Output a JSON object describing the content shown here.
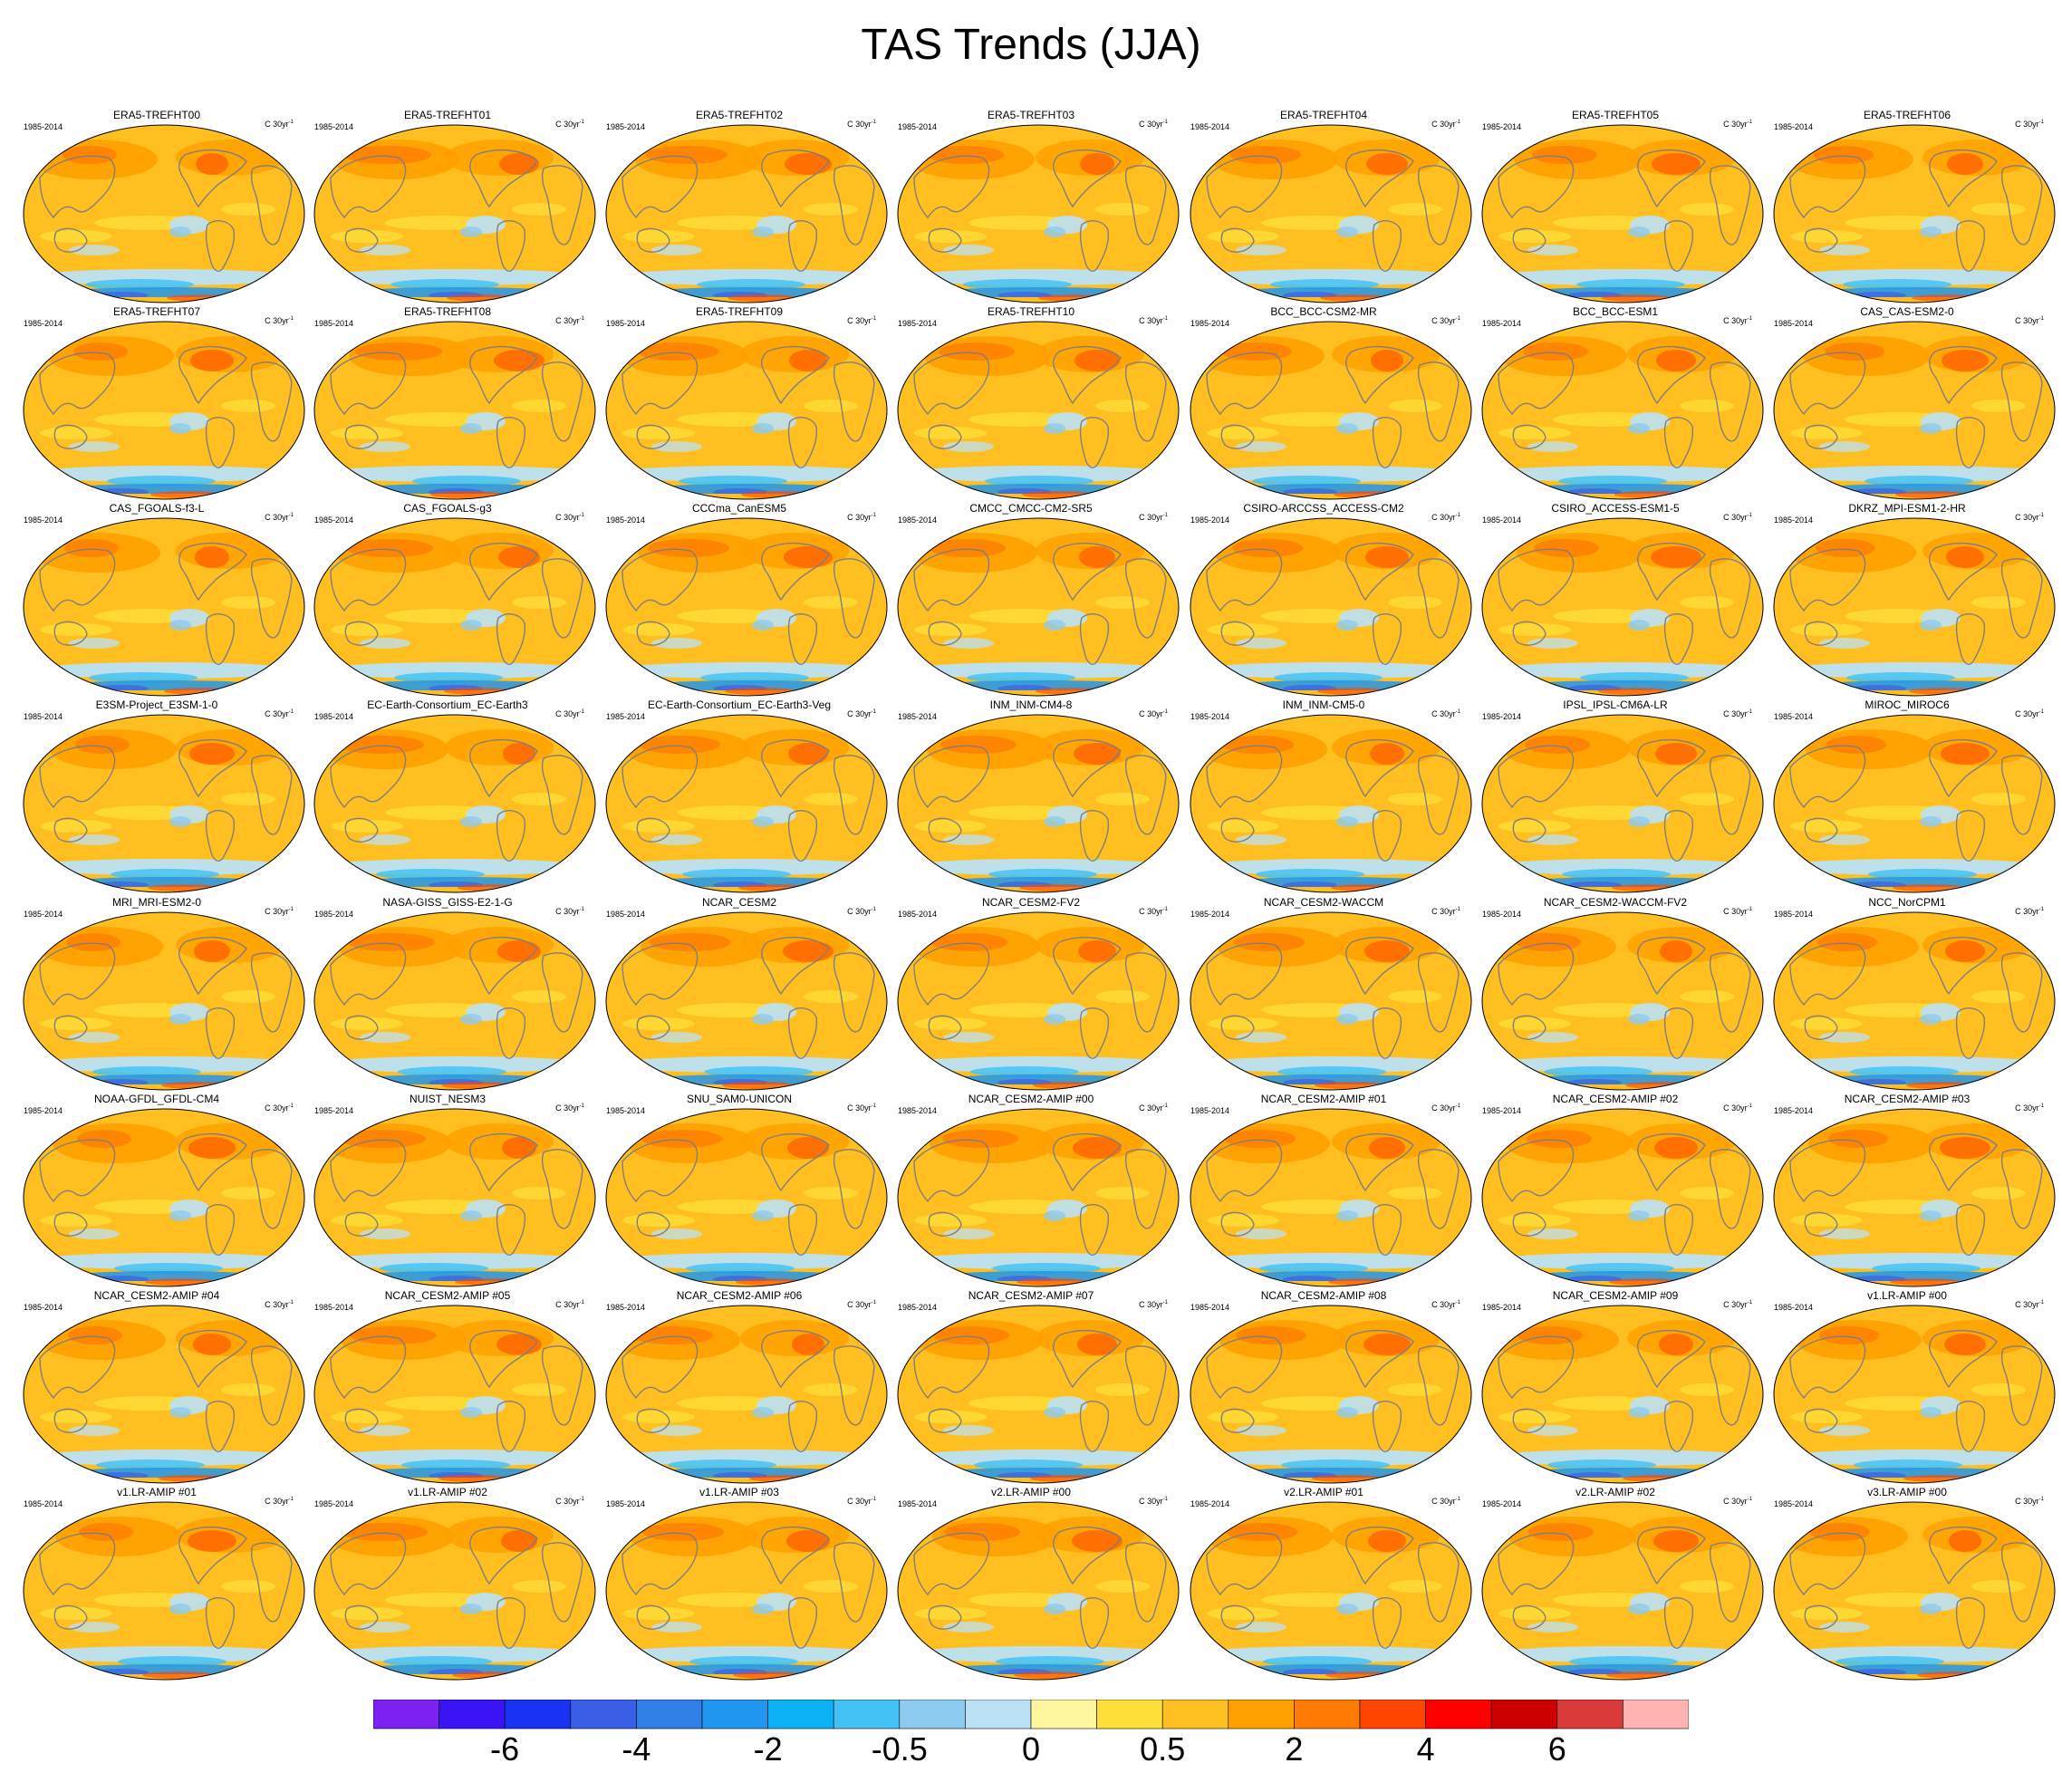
{
  "title": "TAS Trends (JJA)",
  "period": "1985-2014",
  "units_base": "C 30yr",
  "units_exp": "-1",
  "colors": {
    "land_outline": "#7f7f7f",
    "palette": [
      "#7b22f0",
      "#3a14f5",
      "#1a33f2",
      "#3a5ee6",
      "#2f7fe6",
      "#2096f0",
      "#0db1f5",
      "#45c2f5",
      "#8ccbef",
      "#bbe1f5",
      "#fff8a0",
      "#ffdf3a",
      "#ffbf20",
      "#ffa000",
      "#ff7a00",
      "#ff4500",
      "#ff0000",
      "#cc0000",
      "#d93a3a",
      "#ffb3b3"
    ]
  },
  "colorbar": {
    "labels": [
      "-6",
      "-4",
      "-2",
      "-0.5",
      "0",
      "0.5",
      "2",
      "4",
      "6"
    ],
    "label_boxes": [
      2,
      4,
      6,
      8,
      10,
      12,
      14,
      16,
      18
    ]
  },
  "panels": [
    {
      "name": "ERA5-TREFHT00"
    },
    {
      "name": "ERA5-TREFHT01"
    },
    {
      "name": "ERA5-TREFHT02"
    },
    {
      "name": "ERA5-TREFHT03"
    },
    {
      "name": "ERA5-TREFHT04"
    },
    {
      "name": "ERA5-TREFHT05"
    },
    {
      "name": "ERA5-TREFHT06"
    },
    {
      "name": "ERA5-TREFHT07"
    },
    {
      "name": "ERA5-TREFHT08"
    },
    {
      "name": "ERA5-TREFHT09"
    },
    {
      "name": "ERA5-TREFHT10"
    },
    {
      "name": "BCC_BCC-CSM2-MR"
    },
    {
      "name": "BCC_BCC-ESM1"
    },
    {
      "name": "CAS_CAS-ESM2-0"
    },
    {
      "name": "CAS_FGOALS-f3-L"
    },
    {
      "name": "CAS_FGOALS-g3"
    },
    {
      "name": "CCCma_CanESM5"
    },
    {
      "name": "CMCC_CMCC-CM2-SR5"
    },
    {
      "name": "CSIRO-ARCCSS_ACCESS-CM2"
    },
    {
      "name": "CSIRO_ACCESS-ESM1-5"
    },
    {
      "name": "DKRZ_MPI-ESM1-2-HR"
    },
    {
      "name": "E3SM-Project_E3SM-1-0"
    },
    {
      "name": "EC-Earth-Consortium_EC-Earth3"
    },
    {
      "name": "EC-Earth-Consortium_EC-Earth3-Veg"
    },
    {
      "name": "INM_INM-CM4-8"
    },
    {
      "name": "INM_INM-CM5-0"
    },
    {
      "name": "IPSL_IPSL-CM6A-LR"
    },
    {
      "name": "MIROC_MIROC6"
    },
    {
      "name": "MRI_MRI-ESM2-0"
    },
    {
      "name": "NASA-GISS_GISS-E2-1-G"
    },
    {
      "name": "NCAR_CESM2"
    },
    {
      "name": "NCAR_CESM2-FV2"
    },
    {
      "name": "NCAR_CESM2-WACCM"
    },
    {
      "name": "NCAR_CESM2-WACCM-FV2"
    },
    {
      "name": "NCC_NorCPM1"
    },
    {
      "name": "NOAA-GFDL_GFDL-CM4"
    },
    {
      "name": "NUIST_NESM3"
    },
    {
      "name": "SNU_SAM0-UNICON"
    },
    {
      "name": "NCAR_CESM2-AMIP  #00"
    },
    {
      "name": "NCAR_CESM2-AMIP  #01"
    },
    {
      "name": "NCAR_CESM2-AMIP  #02"
    },
    {
      "name": "NCAR_CESM2-AMIP  #03"
    },
    {
      "name": "NCAR_CESM2-AMIP  #04"
    },
    {
      "name": "NCAR_CESM2-AMIP  #05"
    },
    {
      "name": "NCAR_CESM2-AMIP  #06"
    },
    {
      "name": "NCAR_CESM2-AMIP  #07"
    },
    {
      "name": "NCAR_CESM2-AMIP  #08"
    },
    {
      "name": "NCAR_CESM2-AMIP  #09"
    },
    {
      "name": "v1.LR-AMIP  #00"
    },
    {
      "name": "v1.LR-AMIP  #01"
    },
    {
      "name": "v1.LR-AMIP  #02"
    },
    {
      "name": "v1.LR-AMIP  #03"
    },
    {
      "name": "v2.LR-AMIP  #00"
    },
    {
      "name": "v2.LR-AMIP  #01"
    },
    {
      "name": "v2.LR-AMIP  #02"
    },
    {
      "name": "v3.LR-AMIP  #00"
    }
  ]
}
